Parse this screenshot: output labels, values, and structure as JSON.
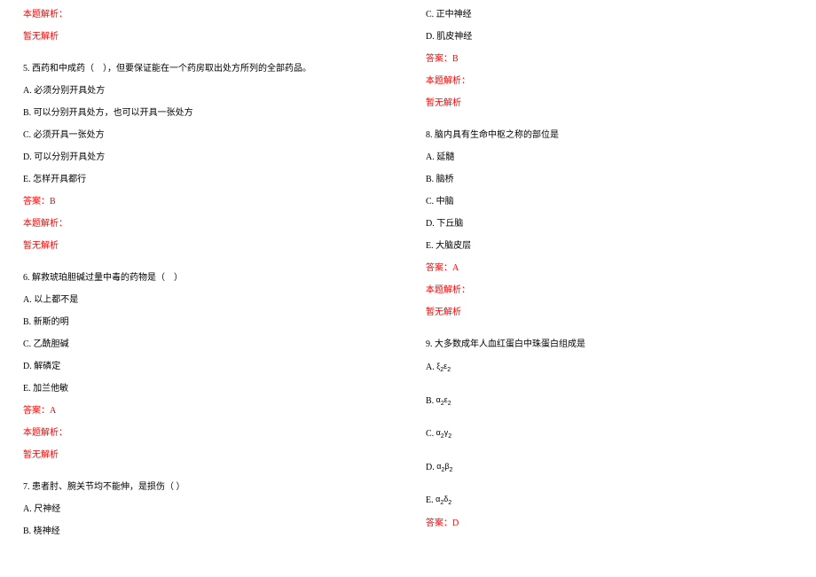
{
  "colors": {
    "text": "#000000",
    "highlight": "#ff0000",
    "background": "#ffffff"
  },
  "typography": {
    "font_family": "SimSun",
    "font_size_pt": 10,
    "line_spacing": 11
  },
  "shared": {
    "analysis_label": "本题解析：",
    "no_analysis": "暂无解析",
    "answer_prefix": "答案："
  },
  "left": {
    "q5": {
      "stem": "5. 西药和中成药（　），但要保证能在一个药房取出处方所列的全部药品。",
      "opts": {
        "A": "A. 必须分别开具处方",
        "B": "B. 可以分别开具处方，也可以开具一张处方",
        "C": "C. 必须开具一张处方",
        "D": "D. 可以分别开具处方",
        "E": "E. 怎样开具都行"
      },
      "answer": "答案：B"
    },
    "q6": {
      "stem": "6. 解救琥珀胆碱过量中毒的药物是（　）",
      "opts": {
        "A": "A. 以上都不是",
        "B": "B. 新斯的明",
        "C": "C. 乙酰胆碱",
        "D": "D. 解磷定",
        "E": "E. 加兰他敏"
      },
      "answer": "答案：A"
    },
    "q7": {
      "stem": "7. 患者肘、腕关节均不能伸，是损伤（ ）",
      "opts": {
        "A": "A. 尺神经",
        "B": "B. 桡神经"
      }
    }
  },
  "right": {
    "q7_cont": {
      "opts": {
        "C": "C. 正中神经",
        "D": "D. 肌皮神经"
      },
      "answer": "答案：B"
    },
    "q8": {
      "stem": "8. 脑内具有生命中枢之称的部位是",
      "opts": {
        "A": "A. 延髓",
        "B": "B. 脑桥",
        "C": "C. 中脑",
        "D": "D. 下丘脑",
        "E": "E. 大脑皮层"
      },
      "answer": "答案：A"
    },
    "q9": {
      "stem": "9. 大多数成年人血红蛋白中珠蛋白组成是",
      "opts": {
        "A": "A.",
        "B": "B.",
        "C": "C.",
        "D": "D.",
        "E": "E."
      },
      "formulas": {
        "A": "ξ₂ε₂",
        "B": "α₂ε₂",
        "C": "α₂γ₂",
        "D": "α₂β₂",
        "E": "α₂δ₂"
      },
      "answer": "答案：D"
    }
  }
}
